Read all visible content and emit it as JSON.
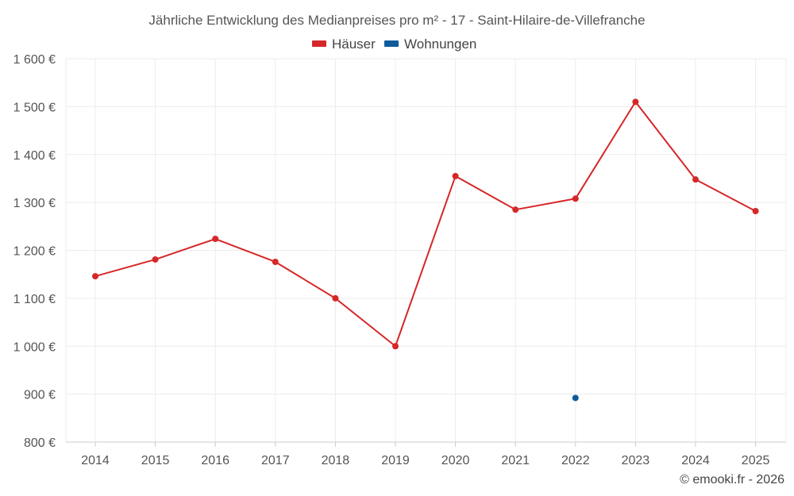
{
  "chart_data": {
    "type": "line",
    "title": "Jährliche Entwicklung des Medianpreises pro m² - 17 - Saint-Hilaire-de-Villefranche",
    "x": [
      "2014",
      "2015",
      "2016",
      "2017",
      "2018",
      "2019",
      "2020",
      "2021",
      "2022",
      "2023",
      "2024",
      "2025"
    ],
    "series": [
      {
        "name": "Häuser",
        "color": "#d62728",
        "values": [
          1146,
          1181,
          1224,
          1176,
          1100,
          1000,
          1355,
          1285,
          1308,
          1510,
          1348,
          1282
        ]
      },
      {
        "name": "Wohnungen",
        "color": "#0e5a9a",
        "values": [
          null,
          null,
          null,
          null,
          null,
          null,
          null,
          null,
          892,
          null,
          null,
          null
        ]
      }
    ],
    "ylim": [
      800,
      1600
    ],
    "yticks": [
      800,
      900,
      1000,
      1100,
      1200,
      1300,
      1400,
      1500,
      1600
    ],
    "ytick_labels": [
      "800 €",
      "900 €",
      "1 000 €",
      "1 100 €",
      "1 200 €",
      "1 300 €",
      "1 400 €",
      "1 500 €",
      "1 600 €"
    ],
    "grid": true,
    "legend": "top-center"
  },
  "copyright": "© emooki.fr - 2026"
}
